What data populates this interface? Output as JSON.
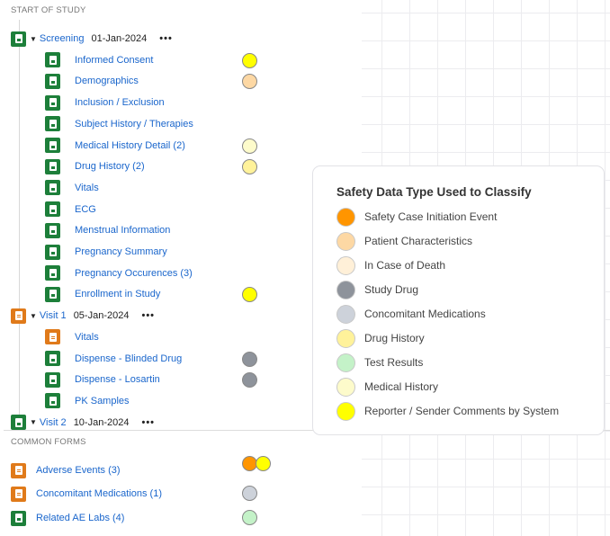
{
  "sections": {
    "start": "START OF STUDY",
    "common": "COMMON FORMS"
  },
  "colors": {
    "orange": "#ff9500",
    "peach": "#fdd8a4",
    "cream": "#fff0d8",
    "darkgray": "#8e939b",
    "lightgray": "#cdd2da",
    "paleyellow": "#fff29a",
    "green": "#c4f2c8",
    "lightyellow": "#fdfbcb",
    "yellow": "#ffff00"
  },
  "visits": [
    {
      "label": "Screening",
      "date": "01-Jan-2024",
      "more": "•••",
      "icon": "green",
      "forms": [
        {
          "label": "Informed Consent",
          "icon": "green",
          "dots": [
            "yellow"
          ]
        },
        {
          "label": "Demographics",
          "icon": "green",
          "dots": [
            "peach"
          ]
        },
        {
          "label": "Inclusion / Exclusion",
          "icon": "green",
          "dots": []
        },
        {
          "label": "Subject History / Therapies",
          "icon": "green",
          "dots": []
        },
        {
          "label": "Medical History Detail (2)",
          "icon": "green",
          "dots": [
            "lightyellow"
          ]
        },
        {
          "label": "Drug History (2)",
          "icon": "green",
          "dots": [
            "paleyellow"
          ]
        },
        {
          "label": "Vitals",
          "icon": "green",
          "dots": []
        },
        {
          "label": "ECG",
          "icon": "green",
          "dots": []
        },
        {
          "label": "Menstrual Information",
          "icon": "green",
          "dots": []
        },
        {
          "label": "Pregnancy Summary",
          "icon": "green",
          "dots": []
        },
        {
          "label": "Pregnancy Occurences (3)",
          "icon": "green",
          "dots": []
        },
        {
          "label": "Enrollment in Study",
          "icon": "green",
          "dots": [
            "yellow"
          ]
        }
      ]
    },
    {
      "label": "Visit 1",
      "date": "05-Jan-2024",
      "more": "•••",
      "icon": "orange",
      "forms": [
        {
          "label": "Vitals",
          "icon": "orange",
          "dots": []
        },
        {
          "label": "Dispense - Blinded Drug",
          "icon": "green",
          "dots": [
            "darkgray"
          ]
        },
        {
          "label": "Dispense - Losartin",
          "icon": "green",
          "dots": [
            "darkgray"
          ]
        },
        {
          "label": "PK Samples",
          "icon": "green",
          "dots": []
        }
      ]
    },
    {
      "label": "Visit 2",
      "date": "10-Jan-2024",
      "more": "•••",
      "icon": "green",
      "forms": []
    }
  ],
  "common_forms": [
    {
      "label": "Adverse Events (3)",
      "icon": "orange",
      "dots": [
        "orange",
        "yellow"
      ]
    },
    {
      "label": "Concomitant Medications (1)",
      "icon": "orange",
      "dots": [
        "lightgray"
      ]
    },
    {
      "label": "Related AE Labs (4)",
      "icon": "green",
      "dots": [
        "green"
      ]
    }
  ],
  "legend": {
    "title": "Safety Data Type Used to Classify",
    "items": [
      {
        "label": "Safety Case Initiation Event",
        "color": "orange"
      },
      {
        "label": "Patient Characteristics",
        "color": "peach"
      },
      {
        "label": "In Case of Death",
        "color": "cream"
      },
      {
        "label": "Study Drug",
        "color": "darkgray"
      },
      {
        "label": "Concomitant Medications",
        "color": "lightgray"
      },
      {
        "label": "Drug History",
        "color": "paleyellow"
      },
      {
        "label": "Test Results",
        "color": "green"
      },
      {
        "label": "Medical History",
        "color": "lightyellow"
      },
      {
        "label": "Reporter / Sender Comments by System",
        "color": "yellow"
      }
    ]
  }
}
